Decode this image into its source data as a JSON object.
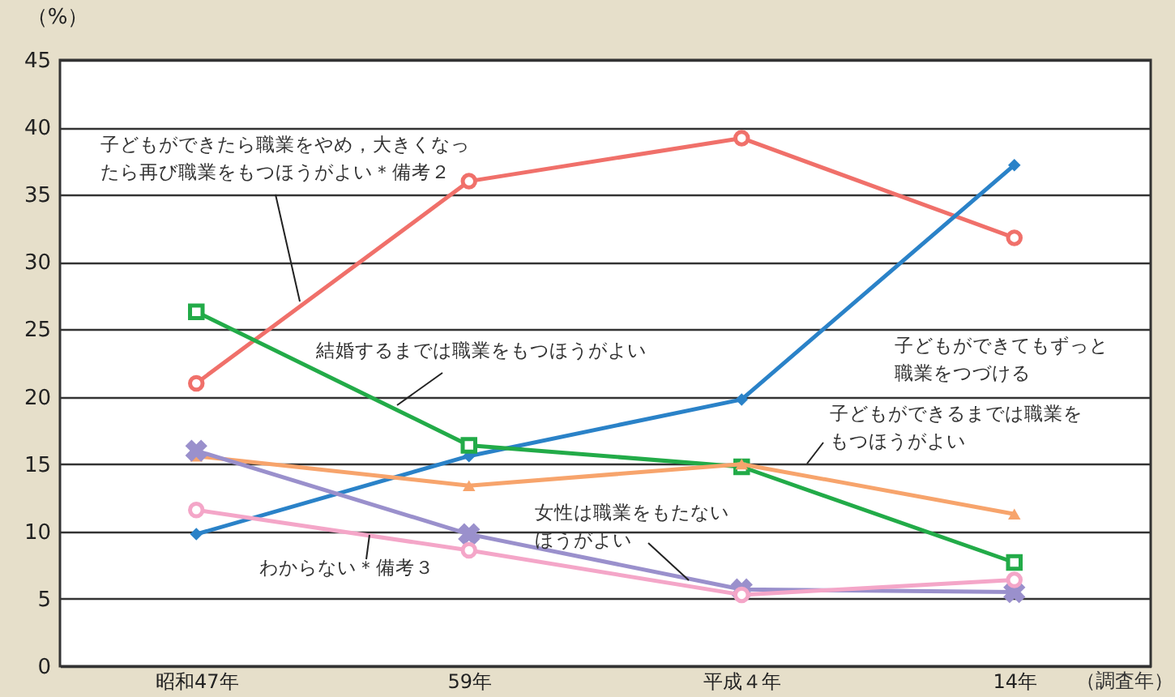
{
  "chart_data": {
    "type": "line",
    "ylabel": "（%）",
    "xlabel": "（調査年）",
    "categories": [
      "昭和47年",
      "59年",
      "平成４年",
      "14年"
    ],
    "ylim": [
      0,
      45
    ],
    "yticks": [
      0,
      5,
      10,
      15,
      20,
      25,
      30,
      35,
      40,
      45
    ],
    "grid": "y",
    "legend": false,
    "series": [
      {
        "name": "子どもができたら職業をやめ，大きくなったら再び職業をもつほうがよい＊備考２",
        "color": "#f0706a",
        "marker": "circle",
        "values": [
          21.0,
          36.0,
          39.2,
          31.8
        ]
      },
      {
        "name": "子どもができてもずっと職業をつづける",
        "color": "#2a82c8",
        "marker": "diamond",
        "values": [
          9.8,
          15.6,
          19.8,
          37.2
        ]
      },
      {
        "name": "結婚するまでは職業をもつほうがよい",
        "color": "#22ab48",
        "marker": "square",
        "values": [
          26.3,
          16.4,
          14.8,
          7.7
        ]
      },
      {
        "name": "子どもができるまでは職業をもつほうがよい",
        "color": "#f7a46c",
        "marker": "triangle",
        "values": [
          15.6,
          13.4,
          15.0,
          11.3
        ]
      },
      {
        "name": "女性は職業をもたないほうがよい",
        "color": "#9a90cc",
        "marker": "cross",
        "values": [
          16.0,
          9.8,
          5.7,
          5.5
        ]
      },
      {
        "name": "わからない＊備考３",
        "color": "#f4a6c8",
        "marker": "circle",
        "values": [
          11.6,
          8.6,
          5.3,
          6.4
        ]
      }
    ]
  }
}
